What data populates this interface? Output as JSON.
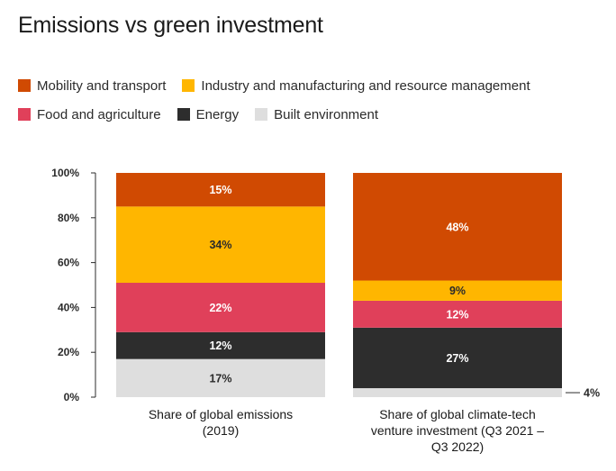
{
  "title": "Emissions vs green investment",
  "legend": [
    {
      "label": "Mobility and transport",
      "color": "#D04A02"
    },
    {
      "label": "Industry and manufacturing and resource management",
      "color": "#FFB600"
    },
    {
      "label": "Food and agriculture",
      "color": "#E0405A"
    },
    {
      "label": "Energy",
      "color": "#2D2D2D"
    },
    {
      "label": "Built environment",
      "color": "#DEDEDE"
    }
  ],
  "chart_data": {
    "type": "bar",
    "stacked": true,
    "title": "Emissions vs green investment",
    "xlabel": "",
    "ylabel": "",
    "ylim": [
      0,
      100
    ],
    "y_ticks": [
      "0%",
      "20%",
      "40%",
      "60%",
      "80%",
      "100%"
    ],
    "categories": [
      [
        "Share of global emissions",
        "(2019)"
      ],
      [
        "Share of global climate-tech",
        "venture investment (Q3 2021 –",
        "Q3 2022)"
      ]
    ],
    "series": [
      {
        "name": "Built environment",
        "color": "#DEDEDE",
        "label_color": "#2b2b2b",
        "values": [
          17,
          4
        ],
        "labels": [
          "17%",
          "4%"
        ]
      },
      {
        "name": "Energy",
        "color": "#2D2D2D",
        "label_color": "#ffffff",
        "values": [
          12,
          27
        ],
        "labels": [
          "12%",
          "27%"
        ]
      },
      {
        "name": "Food and agriculture",
        "color": "#E0405A",
        "label_color": "#ffffff",
        "values": [
          22,
          12
        ],
        "labels": [
          "22%",
          "12%"
        ]
      },
      {
        "name": "Industry and manufacturing and resource management",
        "color": "#FFB600",
        "label_color": "#2b2b2b",
        "values": [
          34,
          9
        ],
        "labels": [
          "34%",
          "9%"
        ]
      },
      {
        "name": "Mobility and transport",
        "color": "#D04A02",
        "label_color": "#ffffff",
        "values": [
          15,
          48
        ],
        "labels": [
          "15%",
          "48%"
        ]
      }
    ],
    "grid": false,
    "legend_position": "top-left"
  }
}
